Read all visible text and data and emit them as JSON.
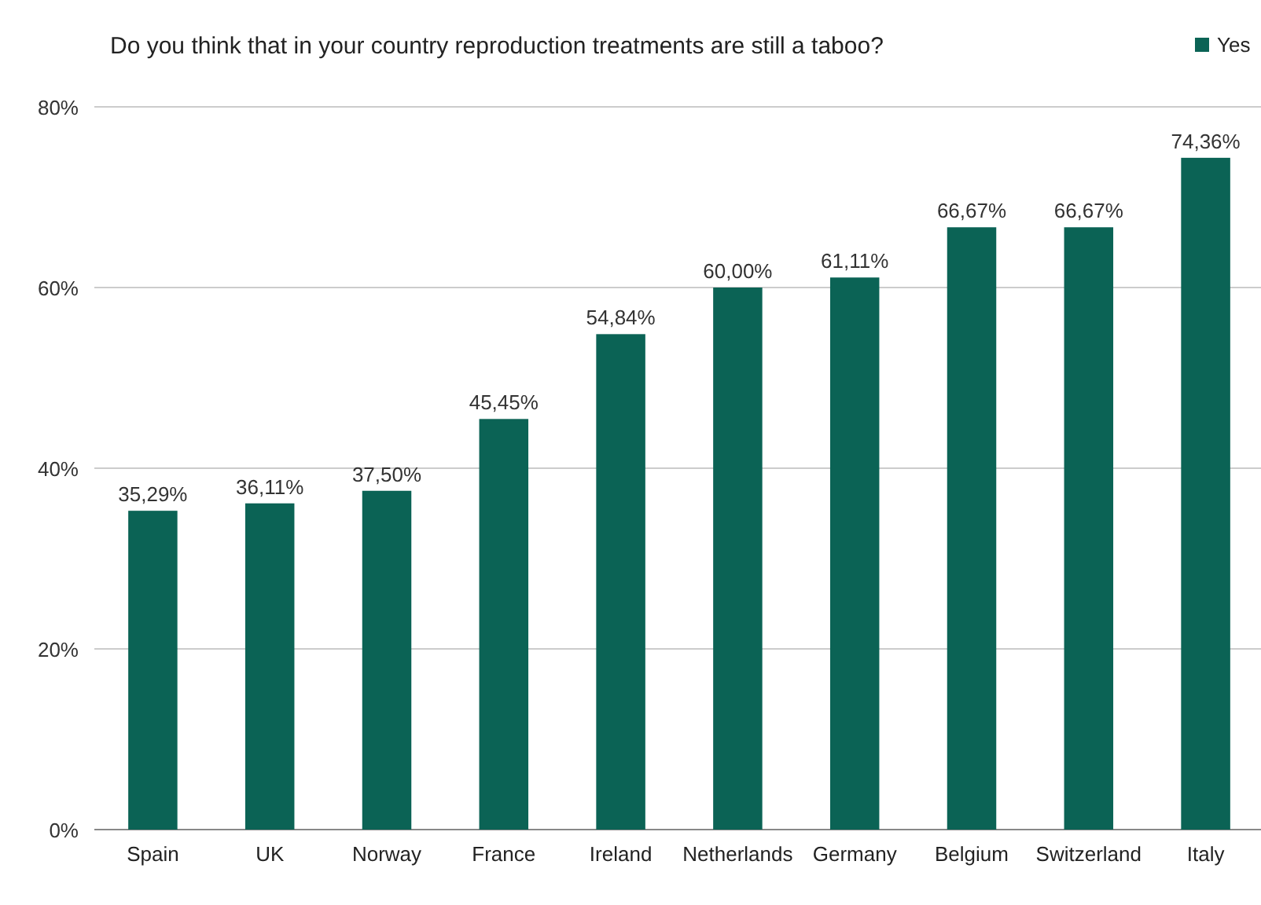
{
  "chart_data": {
    "type": "bar",
    "title": "Do you think that in your country reproduction treatments are still a taboo?",
    "categories": [
      "Spain",
      "UK",
      "Norway",
      "France",
      "Ireland",
      "Netherlands",
      "Germany",
      "Belgium",
      "Switzerland",
      "Italy"
    ],
    "series": [
      {
        "name": "Yes",
        "color": "#0b6355",
        "values": [
          35.29,
          36.11,
          37.5,
          45.45,
          54.84,
          60,
          61.11,
          66.67,
          66.67,
          74.36
        ],
        "value_labels": [
          "35,29%",
          "36,11%",
          "37,50%",
          "45,45%",
          "54,84%",
          "60,00%",
          "61,11%",
          "66,67%",
          "66,67%",
          "74,36%"
        ]
      }
    ],
    "ylim": [
      0,
      80
    ],
    "yticks": [
      {
        "value": 0,
        "label": "0%"
      },
      {
        "value": 20,
        "label": "20%"
      },
      {
        "value": 40,
        "label": "40%"
      },
      {
        "value": 60,
        "label": "60%"
      },
      {
        "value": 80,
        "label": "80%"
      }
    ],
    "grid": "y",
    "legend": "top right"
  }
}
